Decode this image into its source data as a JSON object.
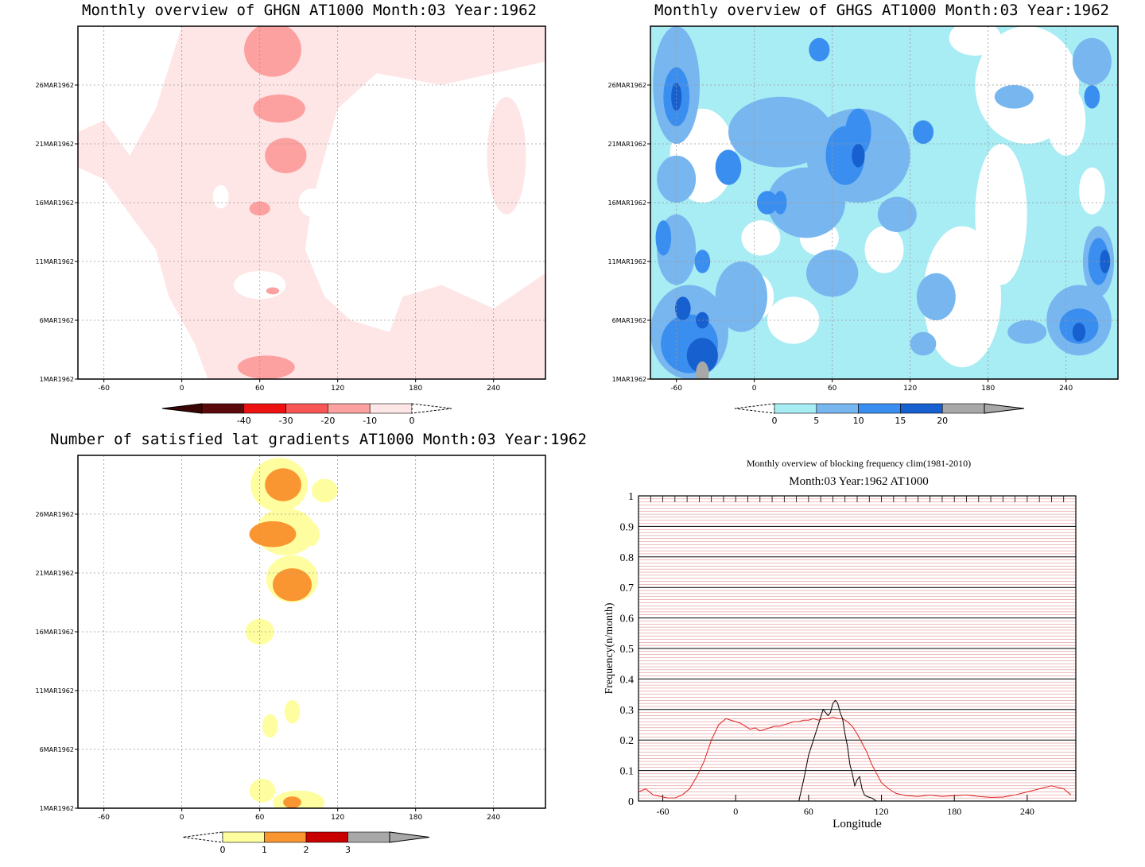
{
  "chart_data": [
    {
      "type": "heatmap",
      "title": "Monthly overview of GHGN AT1000 Month:03 Year:1962",
      "x_ticks": [
        "-60",
        "0",
        "60",
        "120",
        "180",
        "240"
      ],
      "x_tick_values": [
        -60,
        0,
        60,
        120,
        180,
        240
      ],
      "xlim": [
        -80,
        280
      ],
      "y_ticks": [
        "1MAR1962",
        "6MAR1962",
        "11MAR1962",
        "16MAR1962",
        "21MAR1962",
        "26MAR1962"
      ],
      "y_tick_values": [
        1,
        6,
        11,
        16,
        21,
        26
      ],
      "ylim": [
        1,
        31
      ],
      "colorbar": {
        "labels": [
          "-40",
          "-30",
          "-20",
          "-10",
          "0"
        ],
        "colors": [
          "#5a0a0a",
          "#ee1111",
          "#f85555",
          "#fca0a0",
          "#fee6e6"
        ]
      },
      "regions": [
        {
          "level": "0_to_-10",
          "color": "#fee6e6",
          "desc": "broad band from about -80 to 120 longitude"
        },
        {
          "level": "-10_to_-20",
          "color": "#fca0a0",
          "centers": [
            [
              70,
              29
            ],
            [
              75,
              24
            ],
            [
              80,
              20
            ],
            [
              60,
              15.5
            ],
            [
              65,
              2
            ],
            [
              70,
              8.5
            ]
          ]
        }
      ]
    },
    {
      "type": "heatmap",
      "title": "Monthly overview of GHGS AT1000 Month:03 Year:1962",
      "x_ticks": [
        "-60",
        "0",
        "60",
        "120",
        "180",
        "240"
      ],
      "x_tick_values": [
        -60,
        0,
        60,
        120,
        180,
        240
      ],
      "xlim": [
        -80,
        280
      ],
      "y_ticks": [
        "1MAR1962",
        "6MAR1962",
        "11MAR1962",
        "16MAR1962",
        "21MAR1962",
        "26MAR1962"
      ],
      "y_tick_values": [
        1,
        6,
        11,
        16,
        21,
        26
      ],
      "ylim": [
        1,
        31
      ],
      "colorbar": {
        "labels": [
          "0",
          "5",
          "10",
          "15",
          "20"
        ],
        "colors": [
          "#a8ecf4",
          "#78b6f0",
          "#3a8ef0",
          "#1660d0",
          "#a8a8a8"
        ]
      }
    },
    {
      "type": "heatmap",
      "title": "Number of satisfied lat gradients AT1000 Month:03 Year:1962",
      "x_ticks": [
        "-60",
        "0",
        "60",
        "120",
        "180",
        "240"
      ],
      "x_tick_values": [
        -60,
        0,
        60,
        120,
        180,
        240
      ],
      "xlim": [
        -80,
        280
      ],
      "y_ticks": [
        "1MAR1962",
        "6MAR1962",
        "11MAR1962",
        "16MAR1962",
        "21MAR1962",
        "26MAR1962"
      ],
      "y_tick_values": [
        1,
        6,
        11,
        16,
        21,
        26
      ],
      "ylim": [
        1,
        31
      ],
      "colorbar": {
        "labels": [
          "0",
          "1",
          "2",
          "3"
        ],
        "colors": [
          "#fefea0",
          "#fa9632",
          "#c80000",
          "#a8a8a8"
        ]
      },
      "regions": [
        {
          "level": "0-1",
          "color": "#fefea0",
          "centers": [
            [
              75,
              28.5
            ],
            [
              110,
              28
            ],
            [
              80,
              24.5
            ],
            [
              100,
              24.3
            ],
            [
              85,
              20.5
            ],
            [
              60,
              16
            ],
            [
              85,
              9.2
            ],
            [
              68,
              8
            ],
            [
              62,
              2.5
            ],
            [
              90,
              1.5
            ]
          ]
        },
        {
          "level": "1-2",
          "color": "#fa9632",
          "centers": [
            [
              78,
              28.5
            ],
            [
              70,
              24.3
            ],
            [
              85,
              20
            ],
            [
              85,
              1.5
            ]
          ]
        }
      ]
    },
    {
      "type": "line",
      "title": "Monthly overview of blocking frequency clim(1981-2010)",
      "subtitle": "Month:03 Year:1962  AT1000",
      "xlabel": "Longitude",
      "ylabel": "Frequency(n/month)",
      "xlim": [
        -80,
        280
      ],
      "ylim": [
        0,
        1
      ],
      "x_ticks": [
        "-60",
        "0",
        "60",
        "120",
        "180",
        "240"
      ],
      "x_tick_values": [
        -60,
        0,
        60,
        120,
        180,
        240
      ],
      "y_ticks": [
        "0",
        "0.1",
        "0.2",
        "0.3",
        "0.4",
        "0.5",
        "0.6",
        "0.7",
        "0.8",
        "0.9",
        "1"
      ],
      "y_tick_values": [
        0,
        0.1,
        0.2,
        0.3,
        0.4,
        0.5,
        0.6,
        0.7,
        0.8,
        0.9,
        1
      ],
      "series": [
        {
          "color": "#e02020",
          "x": [
            -80,
            -74,
            -68,
            -62,
            -56,
            -50,
            -44,
            -38,
            -32,
            -26,
            -20,
            -14,
            -8,
            -4,
            0,
            4,
            8,
            12,
            16,
            20,
            24,
            28,
            32,
            36,
            40,
            44,
            48,
            52,
            56,
            60,
            64,
            68,
            72,
            76,
            80,
            84,
            88,
            92,
            96,
            100,
            104,
            108,
            112,
            116,
            120,
            126,
            132,
            140,
            150,
            160,
            170,
            180,
            190,
            200,
            210,
            220,
            230,
            240,
            250,
            260,
            270,
            276
          ],
          "values": [
            0.03,
            0.04,
            0.02,
            0.015,
            0.01,
            0.01,
            0.02,
            0.04,
            0.08,
            0.13,
            0.2,
            0.25,
            0.27,
            0.265,
            0.26,
            0.255,
            0.245,
            0.235,
            0.24,
            0.23,
            0.235,
            0.24,
            0.245,
            0.245,
            0.25,
            0.255,
            0.26,
            0.26,
            0.265,
            0.265,
            0.27,
            0.265,
            0.27,
            0.27,
            0.275,
            0.27,
            0.27,
            0.26,
            0.245,
            0.22,
            0.19,
            0.16,
            0.12,
            0.09,
            0.06,
            0.04,
            0.025,
            0.018,
            0.015,
            0.02,
            0.015,
            0.018,
            0.02,
            0.015,
            0.012,
            0.013,
            0.02,
            0.03,
            0.04,
            0.05,
            0.04,
            0.02
          ]
        },
        {
          "color": "#000000",
          "x": [
            52,
            56,
            60,
            64,
            68,
            72,
            76,
            78,
            80,
            82,
            84,
            86,
            88,
            90,
            92,
            94,
            96,
            98,
            100,
            102,
            104,
            106,
            108,
            112,
            116,
            118
          ],
          "values": [
            0.0,
            0.07,
            0.15,
            0.2,
            0.25,
            0.3,
            0.28,
            0.29,
            0.32,
            0.33,
            0.32,
            0.29,
            0.27,
            0.22,
            0.18,
            0.12,
            0.09,
            0.05,
            0.07,
            0.08,
            0.04,
            0.02,
            0.015,
            0.01,
            0.0,
            0.0
          ]
        }
      ]
    }
  ]
}
